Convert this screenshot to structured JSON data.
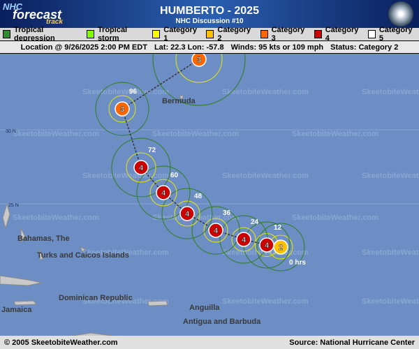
{
  "header": {
    "logo": {
      "top": "NHC",
      "middle": "forecast",
      "bottom": "track"
    },
    "title": "HUMBERTO - 2025",
    "subtitle": "NHC Discussion #10"
  },
  "legend": [
    {
      "label": "Tropical depression",
      "color": "#2e8b2e"
    },
    {
      "label": "Tropical storm",
      "color": "#80ff00"
    },
    {
      "label": "Category 1",
      "color": "#ffff00"
    },
    {
      "label": "Category 2",
      "color": "#ffc000"
    },
    {
      "label": "Category 3",
      "color": "#ff6600"
    },
    {
      "label": "Category 4",
      "color": "#cc0000"
    },
    {
      "label": "Category 5",
      "color": "#ffffff"
    }
  ],
  "info": [
    "Location @ 9/26/2025 2:00 PM EDT",
    "Lat: 22.3 Lon: -57.8",
    "Winds: 95 kts or 109 mph",
    "Status: Category 2"
  ],
  "map": {
    "watermark": "SkeetobiteWeather.com",
    "latitudes": [
      "30 N",
      "25 N"
    ],
    "places": [
      "Bermuda",
      "Bahamas, The",
      "Turks and Caicos Islands",
      "Dominican Republic",
      "Jamaica",
      "Anguilla",
      "Antigua and Barbuda"
    ],
    "points": [
      {
        "label": "0 hrs",
        "category": 2
      },
      {
        "label": "12",
        "category": 4
      },
      {
        "label": "24",
        "category": 4
      },
      {
        "label": "36",
        "category": 4
      },
      {
        "label": "48",
        "category": 4
      },
      {
        "label": "60",
        "category": 4
      },
      {
        "label": "72",
        "category": 4
      },
      {
        "label": "96",
        "category": 3
      },
      {
        "category": 3
      }
    ]
  },
  "footer": {
    "left": "© 2005 SkeetobiteWeather.com",
    "right": "Source: National Hurricane Center"
  }
}
